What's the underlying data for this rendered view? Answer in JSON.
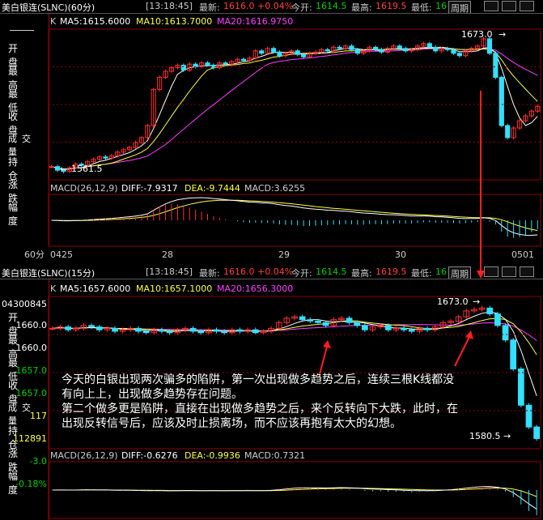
{
  "top": {
    "title": "美白银连(SLNC)(60分)",
    "time": "[13:18:45]",
    "latest_label": "最新:",
    "latest": "1616.0",
    "change": "+0.04%",
    "open_label": "今开:",
    "open": "1614.5",
    "high_label": "最高:",
    "high": "1619.5",
    "low_label": "最低:",
    "low": "16",
    "period_button": "周期",
    "ma_prefix": "K",
    "ma5": "MA5:1615.6000",
    "ma10": "MA10:1613.7000",
    "ma20": "MA20:1616.9750",
    "macd_label": "MACD(26,12,9)",
    "diff": "DIFF:-7.9317",
    "dea": "DEA:-9.7444",
    "macd": "MACD:3.6255",
    "timeframe": "60分",
    "dates": [
      "0425",
      "28",
      "29",
      "30",
      "0501"
    ],
    "peak_label": "1673.0",
    "trough_label": "1561.5",
    "side_labels": [
      "开 盘",
      "最 高",
      "最 低",
      "收 盘",
      "成交量",
      "持 仓",
      "涨 跌",
      "幅 度"
    ]
  },
  "bottom": {
    "title": "美白银连(SLNC)(15分)",
    "time": "[13:18:45]",
    "latest_label": "最新:",
    "latest": "1616.0",
    "change": "+0.04%",
    "open_label": "今开:",
    "open": "1614.5",
    "high_label": "最高:",
    "high": "1619.5",
    "low_label": "最低:",
    "low": "16",
    "period_button": "周期",
    "ma_prefix": "K",
    "ma5": "MA5:1657.6000",
    "ma10": "MA10:1657.1000",
    "ma20": "MA20:1656.3000",
    "macd_label": "MACD(26,12,9)",
    "diff": "DIFF:-0.6276",
    "dea": "DEA:-0.9936",
    "macd": "MACD:0.7321",
    "peak_label": "1673.0",
    "trough_label": "1580.5",
    "side": {
      "date": "04300845",
      "open_label": "开 盘",
      "open": "1660.0",
      "high_label": "最 高",
      "high": "1660.0",
      "low_label": "最 低",
      "low": "1657.0",
      "close_label": "收 盘",
      "close": "1657.0",
      "volume_label": "成交量",
      "volume": "117",
      "hold_label": "持 仓",
      "hold": "112891",
      "change_label": "涨 跌",
      "change": "-3.0",
      "pct_label": "幅 度",
      "pct": "-0.18%"
    }
  },
  "annotation": {
    "line1": "今天的白银出现两次骗多的陷阱，第一次出现做多趋势之后，连续三根K线都没",
    "line2": "有向上上，出现做多趋势存在问题。",
    "line3": "第二个做多更是陷阱，直接在出现做多趋势之后，来个反转向下大跌，此时，在",
    "line4": "出现反转信号后，应该及时止损离场，而不应该再抱有太大的幻想。"
  },
  "colors": {
    "up": "#ff3030",
    "down": "#33e0ff",
    "ma5": "#ffffff",
    "ma10": "#ffff40",
    "ma20": "#ff40ff",
    "grid": "#8b0000"
  },
  "chart_data": [
    {
      "type": "candlestick",
      "title": "美白银连(SLNC)(60分)",
      "x_labels": [
        "0425",
        "28",
        "29",
        "30",
        "0501"
      ],
      "ylim": [
        1555,
        1680
      ],
      "peak": 1673.0,
      "trough": 1561.5,
      "series": [
        {
          "name": "MA5",
          "last": 1615.6
        },
        {
          "name": "MA10",
          "last": 1613.7
        },
        {
          "name": "MA20",
          "last": 1616.975
        }
      ],
      "close": [
        1566,
        1563,
        1562,
        1565,
        1568,
        1567,
        1570,
        1572,
        1574,
        1573,
        1575,
        1578,
        1580,
        1582,
        1586,
        1590,
        1600,
        1630,
        1640,
        1645,
        1648,
        1650,
        1646,
        1651,
        1649,
        1652,
        1650,
        1648,
        1652,
        1651,
        1653,
        1655,
        1654,
        1656,
        1662,
        1660,
        1664,
        1661,
        1658,
        1660,
        1662,
        1659,
        1657,
        1660,
        1661,
        1663,
        1662,
        1665,
        1664,
        1666,
        1663,
        1660,
        1662,
        1665,
        1663,
        1661,
        1664,
        1666,
        1664,
        1662,
        1663,
        1666,
        1668,
        1665,
        1662,
        1664,
        1663,
        1660,
        1658,
        1662,
        1664,
        1666,
        1672,
        1660,
        1640,
        1600,
        1590,
        1598,
        1604,
        1608,
        1612,
        1616
      ]
    },
    {
      "type": "bar",
      "title": "MACD(26,12,9)",
      "series": [
        {
          "name": "DIFF",
          "last": -7.9317
        },
        {
          "name": "DEA",
          "last": -9.7444
        },
        {
          "name": "MACD",
          "last": 3.6255
        }
      ]
    },
    {
      "type": "candlestick",
      "title": "美白银连(SLNC)(15分)",
      "ylim": [
        1575,
        1680
      ],
      "peak": 1673.0,
      "trough": 1580.5,
      "series": [
        {
          "name": "MA5",
          "last": 1657.6
        },
        {
          "name": "MA10",
          "last": 1657.1
        },
        {
          "name": "MA20",
          "last": 1656.3
        }
      ],
      "close": [
        1658,
        1659,
        1657,
        1658,
        1660,
        1659,
        1657,
        1658,
        1656,
        1657,
        1658,
        1656,
        1655,
        1657,
        1656,
        1655,
        1657,
        1658,
        1656,
        1655,
        1657,
        1656,
        1655,
        1657,
        1656,
        1657,
        1655,
        1656,
        1658,
        1662,
        1665,
        1666,
        1664,
        1663,
        1662,
        1660,
        1664,
        1665,
        1662,
        1660,
        1657,
        1659,
        1660,
        1657,
        1658,
        1657,
        1656,
        1658,
        1657,
        1659,
        1662,
        1663,
        1666,
        1670,
        1671,
        1672,
        1668,
        1660,
        1650,
        1630,
        1605,
        1590,
        1582
      ]
    },
    {
      "type": "bar",
      "title": "MACD(26,12,9)",
      "series": [
        {
          "name": "DIFF",
          "last": -0.6276
        },
        {
          "name": "DEA",
          "last": -0.9936
        },
        {
          "name": "MACD",
          "last": 0.7321
        }
      ]
    }
  ]
}
